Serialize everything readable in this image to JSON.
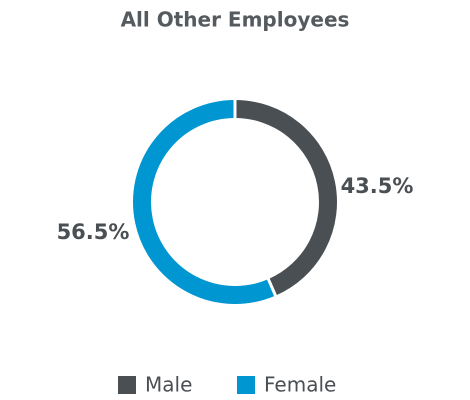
{
  "chart_data": {
    "type": "donut",
    "title": "All Other Employees",
    "categories": [
      "Male",
      "Female"
    ],
    "values": [
      43.5,
      56.5
    ],
    "value_labels": [
      "43.5%",
      "56.5%"
    ],
    "colors": [
      "#4a4f54",
      "#0096d1"
    ],
    "legend": "bottom"
  }
}
